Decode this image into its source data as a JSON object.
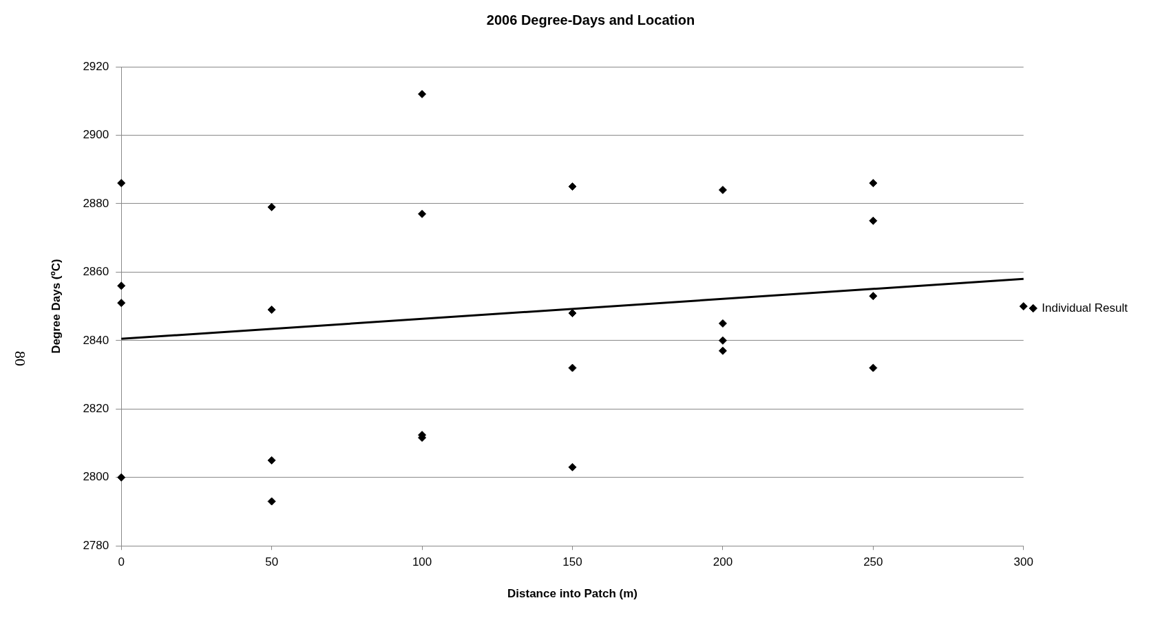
{
  "chart_data": {
    "type": "scatter",
    "title": "2006 Degree-Days and Location",
    "xlabel": "Distance into Patch (m)",
    "ylabel": "Degree Days (ºC)",
    "xlim": [
      0,
      300
    ],
    "xticks": [
      0,
      50,
      100,
      150,
      200,
      250,
      300
    ],
    "ylim": [
      2780,
      2920
    ],
    "yticks": [
      2780,
      2800,
      2820,
      2840,
      2860,
      2880,
      2900,
      2920
    ],
    "grid": "y",
    "legend": "right",
    "marker": "diamond",
    "series": [
      {
        "name": "Individual Result",
        "color": "#000000",
        "x": [
          0,
          0,
          0,
          0,
          50,
          50,
          50,
          50,
          100,
          100,
          100,
          100,
          150,
          150,
          150,
          150,
          200,
          200,
          200,
          200,
          250,
          250,
          250,
          250,
          300
        ],
        "values": [
          2886,
          2856,
          2851,
          2800,
          2879,
          2849,
          2805,
          2793,
          2912,
          2877,
          2812.4,
          2811.6,
          2885,
          2848,
          2832,
          2803,
          2884,
          2845,
          2840,
          2837,
          2886,
          2875,
          2853,
          2832,
          2850
        ]
      },
      {
        "type": "line",
        "color": "#000000",
        "marker": "none",
        "x": [
          0,
          300
        ],
        "values": [
          2840.5,
          2858
        ]
      }
    ],
    "annotations": [
      "80"
    ]
  }
}
